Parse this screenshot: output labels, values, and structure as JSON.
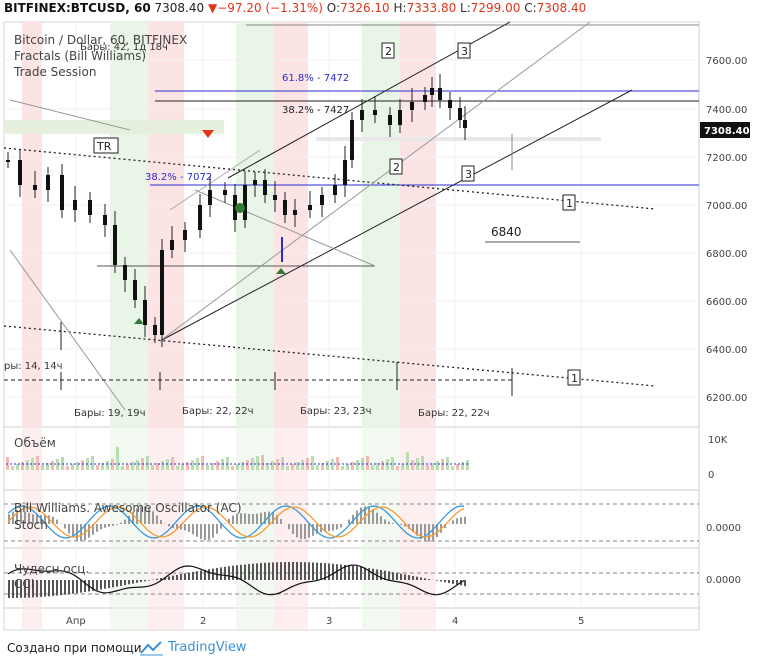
{
  "header": {
    "symbol": "BITFINEX:BTCUSD, 60",
    "last": "7308.40",
    "change": "−97.20 (−1.31%)",
    "o_label": "O:",
    "o": "7326.10",
    "h_label": "H:",
    "h": "7333.80",
    "l_label": "L:",
    "l": "7299.00",
    "c_label": "C:",
    "c": "7308.40"
  },
  "legend": {
    "line1": "Bitcoin / Dollar, 60, BITFINEX",
    "line2": "Fractals (Bill Williams)",
    "line3": "Trade Session"
  },
  "chart_data": {
    "type": "candlestick",
    "price_axis": {
      "ticks": [
        "7600.00",
        "7400.00",
        "7200.00",
        "7000.00",
        "6800.00",
        "6600.00",
        "6400.00",
        "6200.00"
      ],
      "current": "7308.40"
    },
    "time_axis": {
      "labels": [
        "Апр",
        "2",
        "3",
        "4",
        "5"
      ]
    },
    "annotations": {
      "fib_618": "61.8% - 7472",
      "fib_382_top": "38.2% - 7427",
      "fib_382_left": "38.2% - 7072",
      "level_6840": "6840",
      "tr": "TR",
      "bars_top": "Бары: 42, 1д 18ч",
      "bars_left": "ры: 14, 14ч",
      "bars_1": "Бары: 19, 19ч",
      "bars_2": "Бары: 22, 22ч",
      "bars_3": "Бары: 23, 23ч",
      "bars_4": "Бары: 22, 22ч",
      "box_1": "1",
      "box_2": "2",
      "box_3": "3"
    },
    "panels": {
      "volume": {
        "label": "Объём",
        "ticks": [
          "10K",
          "0"
        ]
      },
      "ac": {
        "label": "Bill Williams. Awesome Oscillator (AC)",
        "label2": "Stoch",
        "tick": "0.0000"
      },
      "ao": {
        "label": "Чудесн осц.",
        "label2": "CCI",
        "tick": "0.0000"
      }
    }
  },
  "footer": {
    "made": "Создано при помощи",
    "brand": "TradingView"
  },
  "colors": {
    "up": "#222222",
    "down": "#e0341b",
    "blue": "#2b2bd6",
    "green": "#2e7d32"
  }
}
